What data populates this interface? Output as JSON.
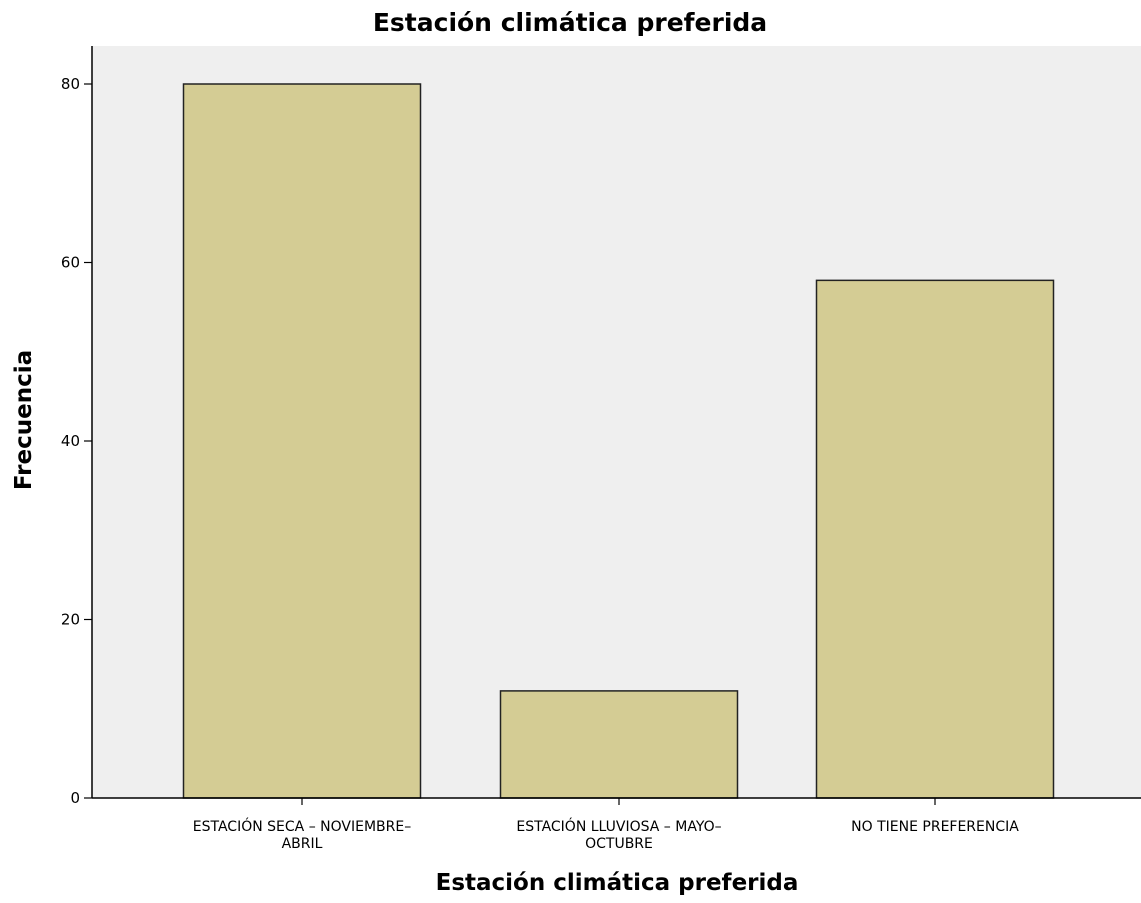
{
  "chart_data": {
    "type": "bar",
    "title": "Estación climática preferida",
    "xlabel": "Estación climática preferida",
    "ylabel": "Frecuencia",
    "categories": [
      "ESTACIÓN SECA - NOVIEMBRE-ABRIL",
      "ESTACIÓN LLUVIOSA - MAYO-OCTUBRE",
      "NO TIENE PREFERENCIA"
    ],
    "category_label_lines": [
      [
        "ESTACIÓN SECA – NOVIEMBRE–",
        "ABRIL"
      ],
      [
        "ESTACIÓN LLUVIOSA – MAYO–",
        "OCTUBRE"
      ],
      [
        "NO TIENE PREFERENCIA"
      ]
    ],
    "values": [
      80,
      12,
      58
    ],
    "ylim": [
      0,
      84.4
    ],
    "yticks": [
      0,
      20,
      40,
      60,
      80
    ],
    "grid": false,
    "colors": {
      "bar_fill": "#d4cc94",
      "bar_stroke": "#222222",
      "plot_background": "#efefef",
      "axis": "#000000"
    }
  }
}
